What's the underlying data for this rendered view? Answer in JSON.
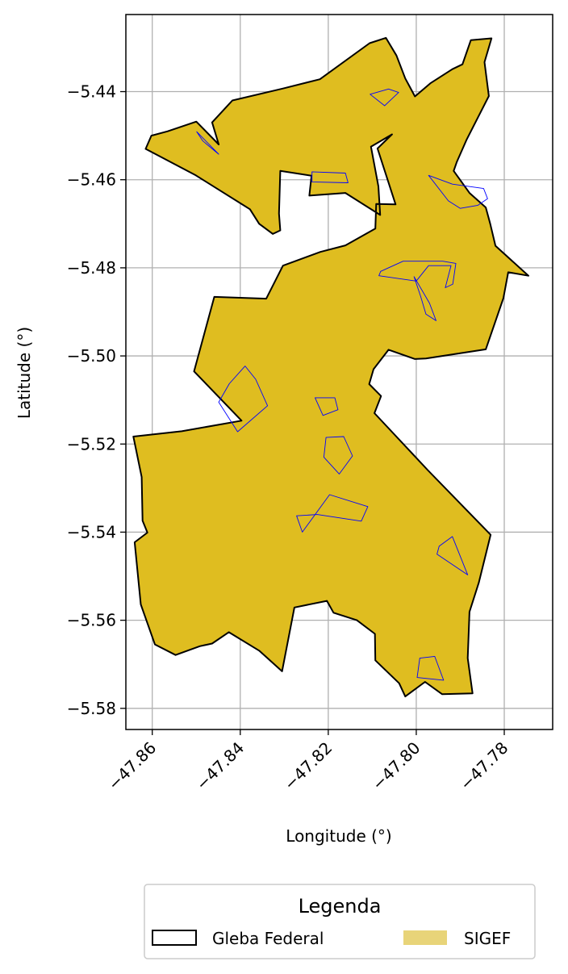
{
  "chart_data": {
    "type": "map",
    "xlabel": "Longitude (°)",
    "ylabel": "Latitude (°)",
    "xlim": [
      -47.866,
      -47.769
    ],
    "ylim": [
      -5.5848,
      -5.4225
    ],
    "x_ticks": [
      -47.86,
      -47.84,
      -47.82,
      -47.8,
      -47.78
    ],
    "x_tick_labels": [
      "−47.86",
      "−47.84",
      "−47.82",
      "−47.80",
      "−47.78"
    ],
    "y_ticks": [
      -5.44,
      -5.46,
      -5.48,
      -5.5,
      -5.52,
      -5.54,
      -5.56,
      -5.58
    ],
    "y_tick_labels": [
      "−5.44",
      "−5.46",
      "−5.48",
      "−5.50",
      "−5.52",
      "−5.54",
      "−5.56",
      "−5.58"
    ],
    "grid": true,
    "legend_placement": "bottom-center, outside plot",
    "legend": {
      "title": "Legenda",
      "entries": [
        {
          "label": "Gleba Federal",
          "style": "outline",
          "edge_color": "#000000",
          "fill": "none"
        },
        {
          "label": "SIGEF",
          "style": "filled",
          "fill": "#e8d479"
        }
      ]
    },
    "colors": {
      "gleba_fill": "#dfbd20",
      "gleba_edge": "#000000",
      "sigef_edge": "#0000ff",
      "grid": "#b0b0b0"
    },
    "layers": {
      "gleba_federal": {
        "name": "Gleba Federal",
        "outer": [
          [
            -47.8449,
            -5.452
          ],
          [
            -47.8464,
            -5.447
          ],
          [
            -47.8418,
            -5.442
          ],
          [
            -47.8303,
            -5.4393
          ],
          [
            -47.8219,
            -5.4372
          ],
          [
            -47.8106,
            -5.429
          ],
          [
            -47.8069,
            -5.4278
          ],
          [
            -47.8045,
            -5.4318
          ],
          [
            -47.8025,
            -5.437
          ],
          [
            -47.8003,
            -5.4411
          ],
          [
            -47.7968,
            -5.4381
          ],
          [
            -47.7918,
            -5.4349
          ],
          [
            -47.7895,
            -5.4338
          ],
          [
            -47.7876,
            -5.4283
          ],
          [
            -47.7829,
            -5.4279
          ],
          [
            -47.7845,
            -5.4333
          ],
          [
            -47.7835,
            -5.441
          ],
          [
            -47.7886,
            -5.451
          ],
          [
            -47.7908,
            -5.456
          ],
          [
            -47.7915,
            -5.458
          ],
          [
            -47.7879,
            -5.463
          ],
          [
            -47.7842,
            -5.4663
          ],
          [
            -47.7832,
            -5.47
          ],
          [
            -47.782,
            -5.475
          ],
          [
            -47.7745,
            -5.4818
          ],
          [
            -47.7791,
            -5.481
          ],
          [
            -47.7802,
            -5.4869
          ],
          [
            -47.7842,
            -5.4985
          ],
          [
            -47.7978,
            -5.5006
          ],
          [
            -47.8003,
            -5.5007
          ],
          [
            -47.8063,
            -5.4986
          ],
          [
            -47.8097,
            -5.503
          ],
          [
            -47.8107,
            -5.5064
          ],
          [
            -47.808,
            -5.5091
          ],
          [
            -47.8095,
            -5.513
          ],
          [
            -47.7974,
            -5.5259
          ],
          [
            -47.7831,
            -5.5406
          ],
          [
            -47.7858,
            -5.5515
          ],
          [
            -47.7879,
            -5.5581
          ],
          [
            -47.7883,
            -5.5686
          ],
          [
            -47.7872,
            -5.5766
          ],
          [
            -47.7941,
            -5.5768
          ],
          [
            -47.798,
            -5.574
          ],
          [
            -47.8025,
            -5.5773
          ],
          [
            -47.8039,
            -5.5743
          ],
          [
            -47.8093,
            -5.5691
          ],
          [
            -47.8094,
            -5.5631
          ],
          [
            -47.8135,
            -5.56
          ],
          [
            -47.8188,
            -5.5583
          ],
          [
            -47.8203,
            -5.5556
          ],
          [
            -47.8277,
            -5.5571
          ],
          [
            -47.8305,
            -5.5716
          ],
          [
            -47.8357,
            -5.5669
          ],
          [
            -47.8426,
            -5.5627
          ],
          [
            -47.8464,
            -5.5653
          ],
          [
            -47.8492,
            -5.5659
          ],
          [
            -47.8547,
            -5.5679
          ],
          [
            -47.8594,
            -5.5655
          ],
          [
            -47.8626,
            -5.5564
          ],
          [
            -47.864,
            -5.5423
          ],
          [
            -47.8611,
            -5.5401
          ],
          [
            -47.8622,
            -5.5374
          ],
          [
            -47.8624,
            -5.5275
          ],
          [
            -47.8643,
            -5.5183
          ],
          [
            -47.8533,
            -5.5171
          ],
          [
            -47.8397,
            -5.5147
          ],
          [
            -47.8505,
            -5.5035
          ],
          [
            -47.8459,
            -5.4866
          ],
          [
            -47.8341,
            -5.487
          ],
          [
            -47.8303,
            -5.4795
          ],
          [
            -47.8218,
            -5.4764
          ],
          [
            -47.8161,
            -5.4749
          ],
          [
            -47.8093,
            -5.4711
          ],
          [
            -47.8091,
            -5.4655
          ],
          [
            -47.8047,
            -5.4656
          ],
          [
            -47.8088,
            -5.4529
          ],
          [
            -47.8055,
            -5.4497
          ],
          [
            -47.8103,
            -5.4525
          ],
          [
            -47.8086,
            -5.4615
          ],
          [
            -47.8082,
            -5.468
          ],
          [
            -47.8161,
            -5.463
          ],
          [
            -47.8243,
            -5.4636
          ],
          [
            -47.8238,
            -5.4591
          ],
          [
            -47.8309,
            -5.458
          ],
          [
            -47.8312,
            -5.4677
          ],
          [
            -47.8309,
            -5.4715
          ],
          [
            -47.8326,
            -5.4723
          ],
          [
            -47.8357,
            -5.47
          ],
          [
            -47.8378,
            -5.4667
          ],
          [
            -47.8501,
            -5.459
          ],
          [
            -47.8615,
            -5.453
          ],
          [
            -47.8602,
            -5.45
          ],
          [
            -47.8565,
            -5.449
          ],
          [
            -47.85,
            -5.4468
          ],
          [
            -47.8449,
            -5.452
          ]
        ]
      },
      "sigef_parcels": {
        "name": "SIGEF",
        "parcels": [
          [
            [
              -47.8105,
              -5.4406
            ],
            [
              -47.8063,
              -5.4394
            ],
            [
              -47.804,
              -5.4402
            ],
            [
              -47.8072,
              -5.4432
            ],
            [
              -47.8105,
              -5.4406
            ]
          ],
          [
            [
              -47.8499,
              -5.4491
            ],
            [
              -47.8449,
              -5.4542
            ],
            [
              -47.8485,
              -5.4512
            ],
            [
              -47.8499,
              -5.4491
            ]
          ],
          [
            [
              -47.8237,
              -5.4582
            ],
            [
              -47.8161,
              -5.4585
            ],
            [
              -47.8155,
              -5.4607
            ],
            [
              -47.8237,
              -5.4605
            ],
            [
              -47.8237,
              -5.4582
            ]
          ],
          [
            [
              -47.7972,
              -5.459
            ],
            [
              -47.7927,
              -5.4648
            ],
            [
              -47.79,
              -5.4665
            ],
            [
              -47.786,
              -5.4658
            ],
            [
              -47.7838,
              -5.4643
            ],
            [
              -47.7847,
              -5.462
            ],
            [
              -47.7918,
              -5.461
            ],
            [
              -47.7972,
              -5.459
            ]
          ],
          [
            [
              -47.8081,
              -5.4808
            ],
            [
              -47.803,
              -5.4785
            ],
            [
              -47.794,
              -5.4785
            ],
            [
              -47.791,
              -5.479
            ],
            [
              -47.7917,
              -5.4837
            ],
            [
              -47.7934,
              -5.4845
            ],
            [
              -47.7921,
              -5.4795
            ],
            [
              -47.7972,
              -5.4795
            ],
            [
              -47.8,
              -5.483
            ],
            [
              -47.8085,
              -5.4818
            ],
            [
              -47.8081,
              -5.4808
            ]
          ],
          [
            [
              -47.8005,
              -5.482
            ],
            [
              -47.797,
              -5.488
            ],
            [
              -47.7955,
              -5.492
            ],
            [
              -47.7978,
              -5.4905
            ],
            [
              -47.799,
              -5.4865
            ],
            [
              -47.8005,
              -5.482
            ]
          ],
          [
            [
              -47.8389,
              -5.5023
            ],
            [
              -47.8425,
              -5.5063
            ],
            [
              -47.8449,
              -5.5105
            ],
            [
              -47.8406,
              -5.5172
            ],
            [
              -47.8338,
              -5.5113
            ],
            [
              -47.8365,
              -5.5053
            ],
            [
              -47.8389,
              -5.5023
            ]
          ],
          [
            [
              -47.823,
              -5.5095
            ],
            [
              -47.8185,
              -5.5095
            ],
            [
              -47.8178,
              -5.5122
            ],
            [
              -47.8212,
              -5.5135
            ],
            [
              -47.823,
              -5.5095
            ]
          ],
          [
            [
              -47.8205,
              -5.5185
            ],
            [
              -47.8165,
              -5.5183
            ],
            [
              -47.8145,
              -5.5227
            ],
            [
              -47.8175,
              -5.5268
            ],
            [
              -47.821,
              -5.523
            ],
            [
              -47.8205,
              -5.5185
            ]
          ],
          [
            [
              -47.8197,
              -5.5315
            ],
            [
              -47.811,
              -5.5342
            ],
            [
              -47.8125,
              -5.5375
            ],
            [
              -47.8225,
              -5.536
            ],
            [
              -47.8272,
              -5.5363
            ],
            [
              -47.8259,
              -5.54
            ],
            [
              -47.8197,
              -5.5315
            ]
          ],
          [
            [
              -47.7948,
              -5.5432
            ],
            [
              -47.7918,
              -5.541
            ],
            [
              -47.7883,
              -5.5497
            ],
            [
              -47.7953,
              -5.545
            ],
            [
              -47.7948,
              -5.5432
            ]
          ],
          [
            [
              -47.7992,
              -5.5686
            ],
            [
              -47.7958,
              -5.5682
            ],
            [
              -47.7938,
              -5.5736
            ],
            [
              -47.7998,
              -5.573
            ],
            [
              -47.7992,
              -5.5686
            ]
          ]
        ]
      }
    }
  }
}
